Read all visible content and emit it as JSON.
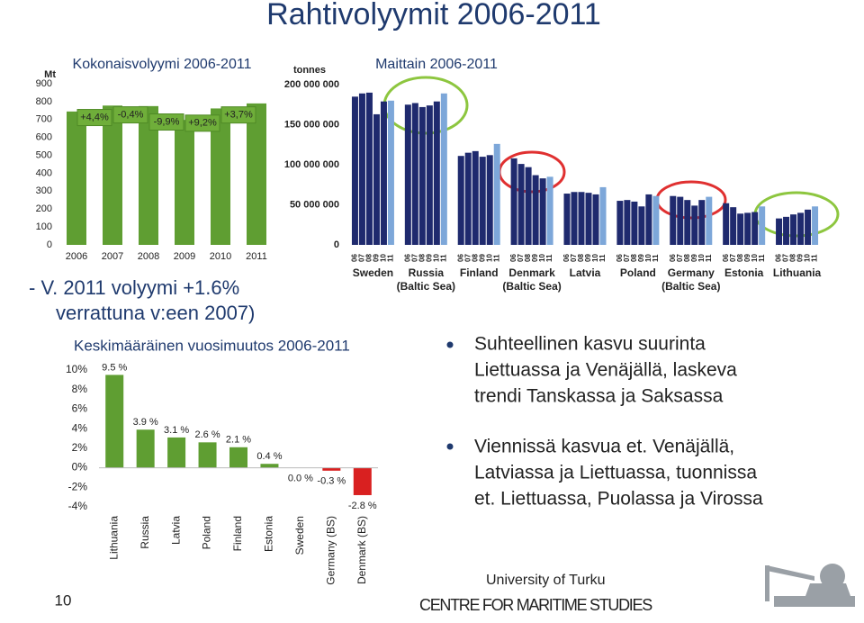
{
  "title": "Rahtivolyymit 2006-2011",
  "note_lines": [
    "-  V. 2011 volyymi +1.6%",
    "verrattuna v:een 2007)"
  ],
  "bullets": [
    [
      "Suhteellinen kasvu suurinta",
      "Liettuassa ja Venäjällä, laskeva",
      "trendi Tanskassa ja Saksassa"
    ],
    [
      "Viennissä kasvua et. Venäjällä,",
      "Latviassa ja Liettuassa, tuonnissa",
      "et. Liettuassa, Puolassa ja Virossa"
    ]
  ],
  "footer": {
    "page": "10",
    "university": "University of Turku",
    "centre": "CENTRE FOR MARITIME STUDIES"
  },
  "chart_data": [
    {
      "type": "bar",
      "title": "Kokonaisvolyymi 2006-2011",
      "y_label": "Mt",
      "categories": [
        "2006",
        "2007",
        "2008",
        "2009",
        "2010",
        "2011"
      ],
      "values": [
        745,
        778,
        775,
        698,
        762,
        790
      ],
      "color": "#5f9e32",
      "annotations": [
        "+4,4%",
        "-0,4%",
        "-9,9%",
        "+9,2%",
        "+3,7%"
      ],
      "ylim": [
        0,
        900
      ],
      "yticks": [
        0,
        100,
        200,
        300,
        400,
        500,
        600,
        700,
        800,
        900
      ]
    },
    {
      "type": "grouped_bar",
      "title": "Maittain 2006-2011",
      "y_label": "tonnes",
      "categories": [
        [
          "Sweden"
        ],
        [
          "Russia",
          "(Baltic Sea)"
        ],
        [
          "Finland"
        ],
        [
          "Denmark",
          "(Baltic Sea)"
        ],
        [
          "Latvia"
        ],
        [
          "Poland"
        ],
        [
          "Germany",
          "(Baltic Sea)"
        ],
        [
          "Estonia"
        ],
        [
          "Lithuania"
        ]
      ],
      "series": [
        {
          "name": "06",
          "color": "#1f2a6e",
          "values": [
            185000000,
            175000000,
            111000000,
            108000000,
            64000000,
            55000000,
            61000000,
            52000000,
            33000000
          ]
        },
        {
          "name": "07",
          "color": "#1f2a6e",
          "values": [
            189000000,
            177000000,
            115000000,
            101000000,
            66000000,
            56000000,
            60000000,
            47000000,
            35000000
          ]
        },
        {
          "name": "08",
          "color": "#1f2a6e",
          "values": [
            190000000,
            172000000,
            117000000,
            97000000,
            66000000,
            54000000,
            56000000,
            39000000,
            38000000
          ]
        },
        {
          "name": "09",
          "color": "#1f2a6e",
          "values": [
            163000000,
            174000000,
            110000000,
            87000000,
            65000000,
            48000000,
            49000000,
            40000000,
            40000000
          ]
        },
        {
          "name": "10",
          "color": "#1f2a6e",
          "values": [
            179000000,
            179000000,
            112000000,
            83000000,
            63000000,
            63000000,
            56000000,
            41000000,
            44000000
          ]
        },
        {
          "name": "11",
          "color": "#7da7d9",
          "values": [
            180000000,
            189000000,
            126000000,
            85000000,
            72000000,
            61000000,
            60000000,
            48000000,
            48000000
          ]
        }
      ],
      "ylim": [
        0,
        200000000
      ],
      "yticks": [
        0,
        {
          "value": 50000000,
          "label": "50 000 000"
        },
        {
          "value": 100000000,
          "label": "100 000 000"
        },
        {
          "value": 150000000,
          "label": "150 000 000"
        },
        {
          "value": 200000000,
          "label": "200 000 000"
        }
      ]
    },
    {
      "type": "bar",
      "title": "Keskimääräinen vuosimuutos 2006-2011",
      "categories": [
        "Lithuania",
        "Russia",
        "Latvia",
        "Poland",
        "Finland",
        "Estonia",
        "Sweden",
        "Germany (BS)",
        "Denmark (BS)"
      ],
      "values": [
        9.5,
        3.9,
        3.1,
        2.6,
        2.1,
        0.4,
        0.0,
        -0.3,
        -2.8
      ],
      "value_labels": [
        "9.5 %",
        "3.9 %",
        "3.1 %",
        "2.6 %",
        "2.1 %",
        "0.4 %",
        "0.0 %",
        "-0.3 %",
        "-2.8 %"
      ],
      "colors": [
        "#5f9e32",
        "#5f9e32",
        "#5f9e32",
        "#5f9e32",
        "#5f9e32",
        "#5f9e32",
        "#5f9e32",
        "#d92020",
        "#d92020"
      ],
      "ylim": [
        -4,
        10
      ],
      "yticks": [
        {
          "value": -4,
          "label": "-4%"
        },
        {
          "value": -2,
          "label": "-2%"
        },
        {
          "value": 0,
          "label": "0%"
        },
        {
          "value": 2,
          "label": "2%"
        },
        {
          "value": 4,
          "label": "4%"
        },
        {
          "value": 6,
          "label": "6%"
        },
        {
          "value": 8,
          "label": "8%"
        },
        {
          "value": 10,
          "label": "10%"
        }
      ]
    }
  ]
}
